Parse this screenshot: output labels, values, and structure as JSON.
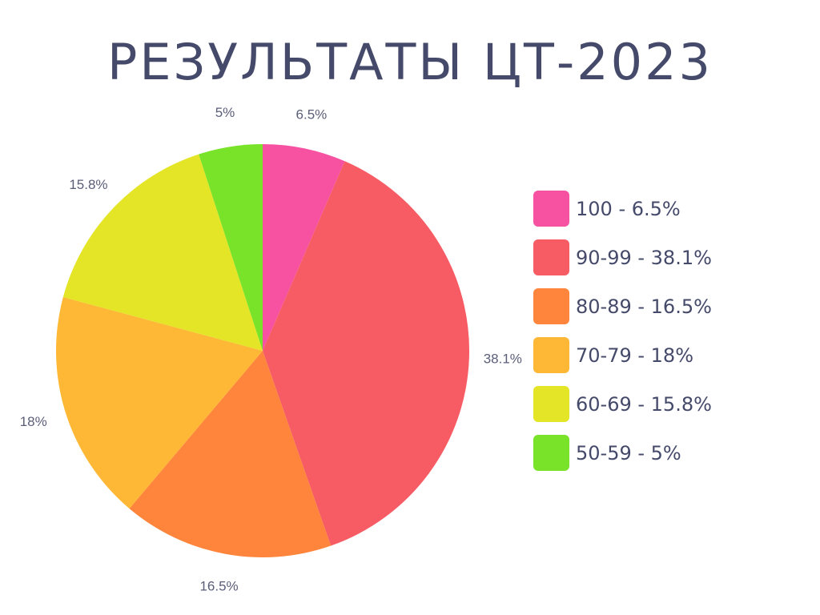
{
  "chart_data": {
    "type": "pie",
    "title": "РЕЗУЛЬТАТЫ ЦТ-2023",
    "slices": [
      {
        "label": "100",
        "value": 6.5,
        "value_label": "6.5%",
        "legend": "100 - 6.5%",
        "color": "#f652a1"
      },
      {
        "label": "90-99",
        "value": 38.1,
        "value_label": "38.1%",
        "legend": "90-99 - 38.1%",
        "color": "#f75b64"
      },
      {
        "label": "80-89",
        "value": 16.5,
        "value_label": "16.5%",
        "legend": "80-89 - 16.5%",
        "color": "#fe853b"
      },
      {
        "label": "70-79",
        "value": 18,
        "value_label": "18%",
        "legend": "70-79 - 18%",
        "color": "#feb835"
      },
      {
        "label": "60-69",
        "value": 15.8,
        "value_label": "15.8%",
        "legend": "60-69 - 15.8%",
        "color": "#e3e526"
      },
      {
        "label": "50-59",
        "value": 5,
        "value_label": "5%",
        "legend": "50-59 - 5%",
        "color": "#79e32a"
      }
    ],
    "start_angle": "12 o'clock",
    "direction": "clockwise",
    "legend_position": "right"
  }
}
